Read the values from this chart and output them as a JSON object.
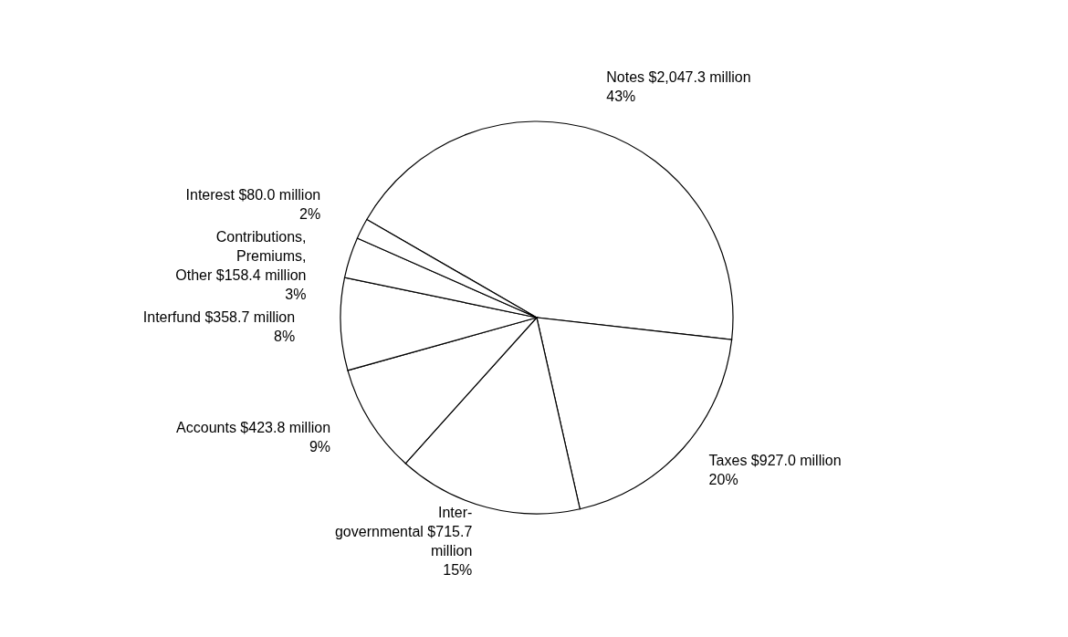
{
  "chart_data": {
    "type": "pie",
    "categories": [
      "Notes",
      "Taxes",
      "Inter-\ngovernmental",
      "Accounts",
      "Interfund",
      "Contributions,\nPremiums,\nOther",
      "Interest"
    ],
    "values": [
      2047300000,
      927000000,
      715700000,
      423800000,
      358700000,
      158400000,
      80000000
    ],
    "value_labels": [
      "$2,047.3 million\n43%",
      "$927.0 million\n20%",
      "$715.7 million\n15%",
      "$423.8 million\n9%",
      "$358.7 million\n8%",
      "$158.4 million\n3%",
      "$80.0 million\n2%"
    ],
    "colors": [
      "#ffffff",
      "#ffffff",
      "#ffffff",
      "#ffffff",
      "#ffffff",
      "#ffffff",
      "#ffffff"
    ]
  }
}
